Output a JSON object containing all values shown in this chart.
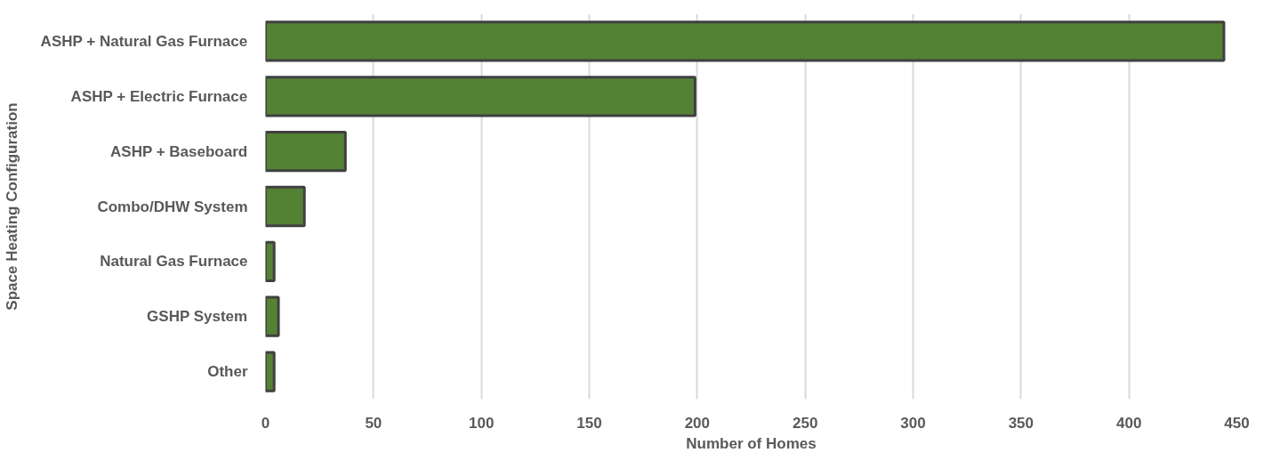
{
  "chart_data": {
    "type": "bar",
    "orientation": "horizontal",
    "xlabel": "Number of Homes",
    "ylabel": "Space Heating Configuration",
    "categories": [
      "ASHP + Natural Gas Furnace",
      "ASHP + Electric Furnace",
      "ASHP + Baseboard",
      "Combo/DHW System",
      "Natural Gas Furnace",
      "GSHP System",
      "Other"
    ],
    "values": [
      444,
      199,
      37,
      18,
      4,
      6,
      4
    ],
    "color": "#548235",
    "xlim": [
      0,
      450
    ],
    "xticks": [
      0,
      50,
      100,
      150,
      200,
      250,
      300,
      350,
      400,
      450
    ],
    "grid": "x"
  }
}
